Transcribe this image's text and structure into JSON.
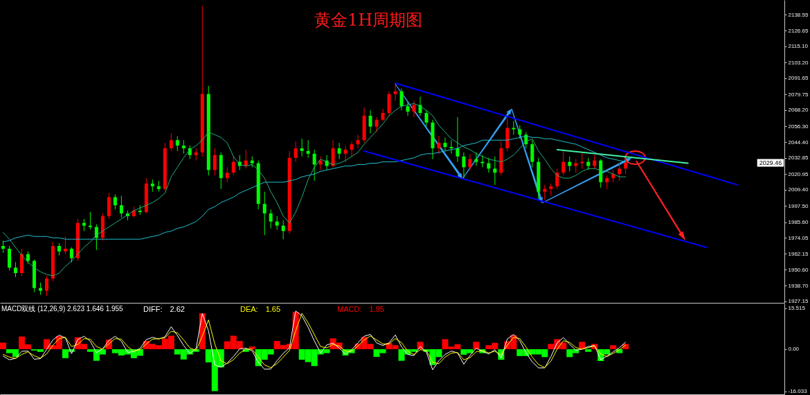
{
  "chart_data": [
    {
      "type": "candlestick",
      "title": "黄金1H周期图",
      "categories": [
        null,
        null,
        null,
        null,
        null,
        null,
        null,
        null,
        null,
        null,
        null,
        null,
        null,
        null,
        null,
        null,
        null,
        null,
        null,
        null,
        null,
        null,
        null,
        null,
        null,
        null,
        null,
        null,
        null,
        null,
        null,
        null,
        null,
        null,
        null,
        null,
        null,
        null,
        null,
        null,
        null,
        null,
        null,
        null,
        null,
        null,
        null,
        null,
        null,
        null,
        null,
        null,
        null,
        null,
        null,
        null,
        null,
        null,
        null,
        null,
        null,
        null,
        null,
        null,
        null,
        null,
        null,
        null,
        null,
        null,
        null,
        null,
        null,
        null,
        null,
        null,
        null,
        null,
        null,
        null,
        null,
        null,
        null,
        null,
        null,
        null,
        null,
        null,
        null,
        null,
        null,
        null,
        null,
        null,
        null,
        null,
        null,
        null,
        null,
        null,
        null,
        null,
        null,
        null,
        null,
        null,
        null,
        null,
        null,
        null,
        null,
        null,
        null,
        null,
        null,
        null,
        null,
        null,
        null,
        null,
        null,
        null,
        null,
        null,
        null,
        null
      ],
      "ohlc": [
        [
          1968,
          1972,
          1963,
          1966
        ],
        [
          1966,
          1968,
          1950,
          1952
        ],
        [
          1952,
          1956,
          1945,
          1948
        ],
        [
          1948,
          1966,
          1946,
          1962
        ],
        [
          1962,
          1964,
          1955,
          1957
        ],
        [
          1957,
          1958,
          1934,
          1937
        ],
        [
          1937,
          1941,
          1932,
          1935
        ],
        [
          1935,
          1946,
          1931,
          1944
        ],
        [
          1944,
          1971,
          1942,
          1968
        ],
        [
          1968,
          1970,
          1961,
          1964
        ],
        [
          1964,
          1975,
          1962,
          1966
        ],
        [
          1966,
          1967,
          1956,
          1959
        ],
        [
          1959,
          1988,
          1957,
          1985
        ],
        [
          1985,
          1988,
          1979,
          1983
        ],
        [
          1983,
          1993,
          1980,
          1982
        ],
        [
          1982,
          1984,
          1965,
          1974
        ],
        [
          1974,
          1992,
          1972,
          1990
        ],
        [
          1990,
          2007,
          1988,
          2004
        ],
        [
          2004,
          2006,
          1995,
          1998
        ],
        [
          1998,
          2005,
          1989,
          1992
        ],
        [
          1992,
          1994,
          1987,
          1990
        ],
        [
          1990,
          1997,
          1989,
          1994
        ],
        [
          1994,
          1998,
          1991,
          1993
        ],
        [
          1993,
          2018,
          1992,
          2014
        ],
        [
          2014,
          2017,
          2008,
          2012
        ],
        [
          2012,
          2016,
          2008,
          2010
        ],
        [
          2010,
          2044,
          2009,
          2040
        ],
        [
          2040,
          2051,
          2038,
          2046
        ],
        [
          2046,
          2049,
          2038,
          2042
        ],
        [
          2042,
          2046,
          2036,
          2040
        ],
        [
          2040,
          2042,
          2032,
          2035
        ],
        [
          2035,
          2040,
          2031,
          2037
        ],
        [
          2037,
          2145,
          2034,
          2080
        ],
        [
          2080,
          2086,
          2020,
          2024
        ],
        [
          2024,
          2040,
          2020,
          2035
        ],
        [
          2035,
          2037,
          2010,
          2018
        ],
        [
          2018,
          2026,
          2015,
          2022
        ],
        [
          2022,
          2034,
          2020,
          2030
        ],
        [
          2030,
          2035,
          2024,
          2027
        ],
        [
          2027,
          2039,
          2025,
          2031
        ],
        [
          2031,
          2034,
          2026,
          2029
        ],
        [
          2029,
          2031,
          1995,
          1999
        ],
        [
          1999,
          2008,
          1976,
          1992
        ],
        [
          1992,
          1995,
          1981,
          1986
        ],
        [
          1986,
          1990,
          1980,
          1983
        ],
        [
          1983,
          1987,
          1973,
          1979
        ],
        [
          1979,
          2038,
          1977,
          2033
        ],
        [
          2033,
          2045,
          2030,
          2040
        ],
        [
          2040,
          2047,
          2034,
          2038
        ],
        [
          2038,
          2046,
          2033,
          2036
        ],
        [
          2036,
          2039,
          2016,
          2028
        ],
        [
          2028,
          2034,
          2024,
          2031
        ],
        [
          2031,
          2035,
          2024,
          2027
        ],
        [
          2027,
          2046,
          2026,
          2040
        ],
        [
          2040,
          2044,
          2032,
          2036
        ],
        [
          2036,
          2042,
          2030,
          2039
        ],
        [
          2039,
          2045,
          2034,
          2043
        ],
        [
          2043,
          2050,
          2040,
          2046
        ],
        [
          2046,
          2070,
          2044,
          2064
        ],
        [
          2064,
          2068,
          2051,
          2056
        ],
        [
          2056,
          2063,
          2052,
          2061
        ],
        [
          2061,
          2069,
          2060,
          2066
        ],
        [
          2066,
          2082,
          2064,
          2080
        ],
        [
          2080,
          2088,
          2075,
          2082
        ],
        [
          2082,
          2084,
          2068,
          2071
        ],
        [
          2071,
          2074,
          2064,
          2067
        ],
        [
          2067,
          2075,
          2063,
          2072
        ],
        [
          2072,
          2078,
          2064,
          2066
        ],
        [
          2066,
          2068,
          2056,
          2059
        ],
        [
          2059,
          2061,
          2032,
          2040
        ],
        [
          2040,
          2049,
          2036,
          2044
        ],
        [
          2044,
          2048,
          2038,
          2041
        ],
        [
          2041,
          2046,
          2036,
          2040
        ],
        [
          2040,
          2063,
          2030,
          2034
        ],
        [
          2034,
          2037,
          2018,
          2026
        ],
        [
          2026,
          2036,
          2024,
          2032
        ],
        [
          2032,
          2037,
          2027,
          2030
        ],
        [
          2030,
          2035,
          2026,
          2029
        ],
        [
          2029,
          2033,
          2022,
          2025
        ],
        [
          2025,
          2034,
          2013,
          2022
        ],
        [
          2022,
          2045,
          2020,
          2040
        ],
        [
          2040,
          2062,
          2038,
          2055
        ],
        [
          2055,
          2060,
          2050,
          2054
        ],
        [
          2054,
          2057,
          2047,
          2050
        ],
        [
          2050,
          2052,
          2040,
          2043
        ],
        [
          2043,
          2046,
          2026,
          2030
        ],
        [
          2030,
          2033,
          2003,
          2008
        ],
        [
          2008,
          2013,
          2002,
          2010
        ],
        [
          2010,
          2014,
          2005,
          2012
        ],
        [
          2012,
          2025,
          2010,
          2022
        ],
        [
          2022,
          2038,
          2020,
          2030
        ],
        [
          2030,
          2034,
          2023,
          2027
        ],
        [
          2027,
          2032,
          2022,
          2029
        ],
        [
          2029,
          2037,
          2025,
          2030
        ],
        [
          2030,
          2033,
          2024,
          2027
        ],
        [
          2027,
          2035,
          2025,
          2031
        ],
        [
          2031,
          2032,
          2011,
          2015
        ],
        [
          2015,
          2020,
          2010,
          2018
        ],
        [
          2018,
          2024,
          2015,
          2021
        ],
        [
          2021,
          2030,
          2016,
          2025
        ],
        [
          2025,
          2031,
          2021,
          2029.46
        ],
        null,
        null,
        null,
        null,
        null,
        null,
        null,
        null,
        null,
        null,
        null,
        null,
        null,
        null,
        null,
        null,
        null,
        null,
        null,
        null,
        null,
        null,
        null,
        null,
        null
      ],
      "colors": [
        "#00ff00",
        "#00ff00",
        "#00ff00",
        "#ff0000",
        "#00ff00",
        "#00ff00",
        "#00ff00",
        "#ff0000",
        "#ff0000",
        "#00ff00",
        "#ff0000",
        "#00ff00",
        "#ff0000",
        "#00ff00",
        "#00ff00",
        "#00ff00",
        "#ff0000",
        "#ff0000",
        "#00ff00",
        "#00ff00",
        "#00ff00",
        "#ff0000",
        "#00ff00",
        "#ff0000",
        "#00ff00",
        "#00ff00",
        "#ff0000",
        "#ff0000",
        "#00ff00",
        "#00ff00",
        "#00ff00",
        "#ff0000",
        "#ff0000",
        "#00ff00",
        "#ff0000",
        "#00ff00",
        "#ff0000",
        "#ff0000",
        "#00ff00",
        "#ff0000",
        "#00ff00",
        "#00ff00",
        "#00ff00",
        "#00ff00",
        "#00ff00",
        "#00ff00",
        "#ff0000",
        "#ff0000",
        "#00ff00",
        "#00ff00",
        "#00ff00",
        "#ff0000",
        "#00ff00",
        "#ff0000",
        "#00ff00",
        "#ff0000",
        "#ff0000",
        "#ff0000",
        "#ff0000",
        "#00ff00",
        "#ff0000",
        "#ff0000",
        "#ff0000",
        "#ff0000",
        "#00ff00",
        "#00ff00",
        "#ff0000",
        "#00ff00",
        "#00ff00",
        "#00ff00",
        "#ff0000",
        "#00ff00",
        "#00ff00",
        "#00ff00",
        "#00ff00",
        "#ff0000",
        "#00ff00",
        "#00ff00",
        "#00ff00",
        "#00ff00",
        "#ff0000",
        "#ff0000",
        "#00ff00",
        "#00ff00",
        "#00ff00",
        "#00ff00",
        "#00ff00",
        "#ff0000",
        "#ff0000",
        "#ff0000",
        "#ff0000",
        "#00ff00",
        "#ff0000",
        "#ff0000",
        "#00ff00",
        "#ff0000",
        "#00ff00",
        "#ff0000",
        "#ff0000",
        "#ff0000",
        "#ff0000",
        null,
        null,
        null,
        null,
        null,
        null,
        null,
        null,
        null,
        null,
        null,
        null,
        null,
        null,
        null,
        null,
        null,
        null,
        null,
        null,
        null,
        null,
        null,
        null,
        null
      ],
      "series": [
        {
          "type": "line",
          "color": "#20b080",
          "values": [
            1978,
            1973,
            1967,
            1961,
            1956,
            1952,
            1949,
            1947,
            1946,
            1948,
            1953,
            1957,
            1962,
            1967,
            1971,
            1976,
            1979,
            1982,
            1985,
            1988,
            1991,
            1994,
            1996,
            1998,
            2000,
            2003,
            2007,
            2019,
            2026,
            2033,
            2039,
            2042,
            2046,
            2052,
            2050,
            2048,
            2044,
            2034,
            2028,
            2027,
            2028,
            2024,
            2018,
            2008,
            2000,
            1990,
            1985,
            1993,
            2004,
            2017,
            2026,
            2032,
            2030,
            2028,
            2029,
            2031,
            2034,
            2037,
            2043,
            2048,
            2053,
            2058,
            2064,
            2068,
            2071,
            2072,
            2073,
            2071,
            2068,
            2064,
            2057,
            2052,
            2047,
            2044,
            2041,
            2039,
            2036,
            2034,
            2032,
            2031,
            2030,
            2032,
            2035,
            2040,
            2045,
            2047,
            2038,
            2032,
            2025,
            2020,
            2018,
            2018,
            2020,
            2023,
            2025,
            2025,
            2024,
            2023,
            2021,
            2019,
            2019,
            null,
            null,
            null,
            null,
            null,
            null,
            null,
            null,
            null,
            null,
            null,
            null,
            null,
            null,
            null,
            null,
            null,
            null,
            null,
            null,
            null,
            null,
            null,
            null,
            null
          ]
        },
        {
          "type": "line",
          "color": "#20c0d0",
          "values": [
            1971,
            1972,
            1974,
            1975,
            1976,
            1975,
            1975,
            1975,
            1974,
            1974,
            1973,
            1973,
            1973,
            1973,
            1973,
            1973,
            1973,
            1973,
            1973,
            1973,
            1973,
            1973,
            1973,
            1974,
            1975,
            1976,
            1978,
            1979,
            1981,
            1982,
            1984,
            1986,
            1990,
            1995,
            1997,
            2000,
            2002,
            2004,
            2007,
            2009,
            2011,
            2013,
            2015,
            2015,
            2015,
            2015,
            2016,
            2017,
            2019,
            2020,
            2021,
            2023,
            2024,
            2025,
            2026,
            2027,
            2027,
            2028,
            2028,
            2029,
            2029,
            2030,
            2030,
            2030,
            2031,
            2032,
            2033,
            2035,
            2036,
            2036,
            2037,
            2038,
            2039,
            2040,
            2042,
            2043,
            2044,
            2046,
            2046,
            2046,
            2046,
            2046,
            2047,
            2048,
            2049,
            2048,
            2048,
            2047,
            2047,
            2046,
            2045,
            2044,
            2043,
            2041,
            2039,
            2037,
            2035,
            2033,
            2032,
            2031,
            2030,
            null,
            null,
            null,
            null,
            null,
            null,
            null,
            null,
            null,
            null,
            null,
            null,
            null,
            null,
            null,
            null,
            null,
            null,
            null,
            null,
            null,
            null,
            null,
            null,
            null
          ]
        },
        {
          "type": "line",
          "color": "#0000ff",
          "values": [
            null,
            null,
            null,
            null,
            null,
            null,
            null,
            null,
            null,
            null,
            null,
            null,
            null,
            null,
            null,
            null,
            null,
            null,
            null,
            null,
            null,
            null,
            null,
            null,
            null,
            null,
            null,
            null,
            null,
            null,
            null,
            null,
            null,
            null,
            null,
            null,
            null,
            null,
            null,
            null,
            null,
            null,
            null,
            null,
            null,
            null,
            null,
            null,
            null,
            null,
            null,
            null,
            null,
            null,
            null,
            null,
            null,
            null,
            null,
            null,
            null,
            null,
            null,
            2088,
            null,
            null,
            null,
            null,
            null,
            null,
            null,
            null,
            null,
            null,
            null,
            null,
            null,
            null,
            null,
            null,
            null,
            null,
            null,
            null,
            null,
            null,
            null,
            null,
            null,
            null,
            null,
            null,
            null,
            null,
            null,
            null,
            null,
            null,
            null,
            null,
            null,
            null,
            null,
            null,
            null,
            null,
            null,
            null,
            null,
            null,
            null,
            null,
            null,
            null,
            null,
            null,
            null,
            null,
            2013,
            null,
            null,
            null,
            null,
            null,
            null,
            null
          ]
        },
        {
          "type": "line",
          "color": "#0000ff",
          "values": [
            null,
            null,
            null,
            null,
            null,
            null,
            null,
            null,
            null,
            null,
            null,
            null,
            null,
            null,
            null,
            null,
            null,
            null,
            null,
            null,
            null,
            null,
            null,
            null,
            null,
            null,
            null,
            null,
            null,
            null,
            null,
            null,
            null,
            null,
            null,
            null,
            null,
            null,
            null,
            null,
            null,
            null,
            null,
            null,
            null,
            null,
            null,
            null,
            null,
            null,
            null,
            null,
            null,
            null,
            null,
            null,
            null,
            null,
            2038,
            null,
            null,
            null,
            null,
            null,
            null,
            null,
            null,
            null,
            null,
            null,
            null,
            null,
            null,
            null,
            null,
            null,
            null,
            null,
            null,
            null,
            null,
            null,
            null,
            null,
            null,
            null,
            null,
            null,
            null,
            null,
            null,
            null,
            null,
            null,
            null,
            null,
            null,
            null,
            null,
            null,
            null,
            null,
            null,
            null,
            null,
            null,
            null,
            null,
            null,
            null,
            null,
            null,
            null,
            1967,
            null,
            null,
            null,
            null,
            null,
            null,
            null,
            null,
            null,
            null,
            null,
            null
          ]
        },
        {
          "type": "line",
          "color": "#40f0a0",
          "values": [
            null,
            null,
            null,
            null,
            null,
            null,
            null,
            null,
            null,
            null,
            null,
            null,
            null,
            null,
            null,
            null,
            null,
            null,
            null,
            null,
            null,
            null,
            null,
            null,
            null,
            null,
            null,
            null,
            null,
            null,
            null,
            null,
            null,
            null,
            null,
            null,
            null,
            null,
            null,
            null,
            null,
            null,
            null,
            null,
            null,
            null,
            null,
            null,
            null,
            null,
            null,
            null,
            null,
            null,
            null,
            null,
            null,
            null,
            null,
            null,
            null,
            null,
            null,
            null,
            null,
            null,
            null,
            null,
            null,
            null,
            null,
            null,
            null,
            null,
            null,
            null,
            null,
            null,
            null,
            null,
            null,
            null,
            null,
            null,
            null,
            null,
            null,
            null,
            null,
            2039,
            null,
            null,
            null,
            null,
            null,
            null,
            null,
            null,
            null,
            null,
            null,
            null,
            null,
            null,
            null,
            null,
            null,
            null,
            null,
            null,
            2029,
            null,
            null,
            null,
            null,
            null,
            null,
            null,
            null,
            null,
            null,
            null,
            null,
            null,
            null,
            null
          ]
        }
      ],
      "ylim": [
        1926.1,
        2149.3
      ],
      "yticks": [
        2138.55,
        2126.65,
        {
          "value": 2115.1,
          "label": "2115.10"
        },
        {
          "value": 2103.2,
          "label": "2103.20"
        },
        2091.65,
        2079.75,
        {
          "value": 2068.2,
          "label": "2068.20"
        },
        {
          "value": 2056.3,
          "label": "2056.30"
        },
        {
          "value": 2044.4,
          "label": "2044.40"
        },
        2032.85,
        2020.95,
        {
          "value": 2009.4,
          "label": "2009.40"
        },
        {
          "value": 1997.5,
          "label": "1997.50"
        },
        {
          "value": 1985.6,
          "label": "1985.60"
        },
        1974.05,
        1962.15,
        {
          "value": 1950.6,
          "label": "1950.60"
        },
        {
          "value": 1938.7,
          "label": "1938.70"
        },
        1927.15
      ],
      "tick_labels": "y",
      "annotations": [
        "2029.46"
      ]
    },
    {
      "type": "bar",
      "title": "MACD双线 (12,26,9) 2.623 1.646 1.955",
      "categories": [
        null,
        null,
        null,
        null,
        null,
        null,
        null,
        null,
        null,
        null,
        null,
        null,
        null,
        null,
        null,
        null,
        null,
        null,
        null,
        null,
        null,
        null,
        null,
        null,
        null,
        null,
        null,
        null,
        null,
        null,
        null,
        null,
        null,
        null,
        null,
        null,
        null,
        null,
        null,
        null,
        null,
        null,
        null,
        null,
        null,
        null,
        null,
        null,
        null,
        null,
        null,
        null,
        null,
        null,
        null,
        null,
        null,
        null,
        null,
        null,
        null,
        null,
        null,
        null,
        null,
        null,
        null,
        null,
        null,
        null,
        null,
        null,
        null,
        null,
        null,
        null,
        null,
        null,
        null,
        null,
        null,
        null,
        null,
        null,
        null,
        null,
        null,
        null,
        null,
        null,
        null,
        null,
        null,
        null,
        null,
        null,
        null,
        null,
        null,
        null,
        null,
        null,
        null,
        null,
        null,
        null,
        null,
        null,
        null,
        null,
        null,
        null,
        null,
        null,
        null,
        null,
        null,
        null,
        null,
        null,
        null,
        null,
        null,
        null,
        null,
        null
      ],
      "series": [
        {
          "name": "DIFF:",
          "type": "line",
          "color": "#ffffff",
          "values": [
            -2.6,
            -4.0,
            -3.5,
            -0.8,
            -0.7,
            -3.8,
            -3.6,
            -0.1,
            3.5,
            5.3,
            4.3,
            -1.7,
            3.7,
            4.9,
            3.0,
            -1.3,
            0.2,
            3.3,
            4.9,
            3.0,
            -1.2,
            -0.9,
            0.3,
            3.6,
            4.5,
            3.8,
            4.7,
            8.5,
            5.2,
            1.4,
            -1.6,
            0.3,
            13.5,
            6.9,
            -6.0,
            -6.8,
            -5.3,
            -2.8,
            0.1,
            0.4,
            -0.6,
            -5.0,
            -7.6,
            -7.5,
            -4.4,
            -1.6,
            0.5,
            14.5,
            12.6,
            8.3,
            3.1,
            -1.4,
            1.6,
            2.3,
            0.4,
            -1.9,
            -0.2,
            2.4,
            4.9,
            5.6,
            2.4,
            1.4,
            2.4,
            5.4,
            0.9,
            -2.0,
            -2.4,
            1.0,
            -1.2,
            -7.8,
            -4.4,
            -2.0,
            -0.7,
            -1.4,
            -5.7,
            -2.4,
            0.4,
            -0.8,
            -1.8,
            -0.2,
            -3.3,
            3.9,
            5.6,
            3.2,
            -1.4,
            -4.8,
            -7.1,
            -7.1,
            -2.8,
            2.4,
            4.4,
            1.9,
            -0.4,
            0.0,
            1.0,
            1.4,
            -4.0,
            -2.6,
            -1.0,
            0.6,
            2.623,
            null,
            null,
            null,
            null,
            null,
            null,
            null,
            null,
            null,
            null,
            null,
            null,
            null,
            null,
            null,
            null,
            null,
            null,
            null,
            null,
            null,
            null,
            null,
            null,
            null
          ]
        },
        {
          "name": "DEA:",
          "type": "line",
          "color": "#ffff00",
          "values": [
            -2.0,
            -3.0,
            -3.5,
            -2.0,
            -1.0,
            -2.5,
            -3.4,
            -1.8,
            1.5,
            4.0,
            4.5,
            1.0,
            1.8,
            4.0,
            3.8,
            1.0,
            0.0,
            2.0,
            4.0,
            3.8,
            1.0,
            -0.7,
            -0.2,
            2.0,
            3.8,
            4.0,
            4.3,
            6.8,
            6.2,
            3.5,
            0.5,
            -0.5,
            5.0,
            11.1,
            2.0,
            -4.5,
            -5.5,
            -4.0,
            -1.5,
            0.0,
            0.0,
            -3.0,
            -6.0,
            -7.0,
            -5.5,
            -3.0,
            -0.5,
            7.0,
            13.6,
            10.0,
            5.5,
            1.0,
            0.5,
            1.8,
            1.2,
            -0.8,
            -0.8,
            1.2,
            3.5,
            5.0,
            3.5,
            2.0,
            2.0,
            4.0,
            2.5,
            -0.8,
            -2.0,
            -0.2,
            -0.5,
            -5.0,
            -5.5,
            -3.0,
            -1.5,
            -1.2,
            -4.0,
            -3.2,
            -1.0,
            -0.5,
            -1.4,
            -0.8,
            -2.2,
            1.5,
            4.5,
            4.0,
            0.8,
            -3.0,
            -5.8,
            -7.0,
            -4.5,
            0.0,
            3.2,
            2.6,
            0.6,
            0.0,
            0.6,
            1.2,
            -1.8,
            -2.8,
            -1.6,
            -0.2,
            1.646,
            null,
            null,
            null,
            null,
            null,
            null,
            null,
            null,
            null,
            null,
            null,
            null,
            null,
            null,
            null,
            null,
            null,
            null,
            null,
            null,
            null,
            null,
            null,
            null,
            null
          ]
        },
        {
          "name": "MACD:",
          "type": "bar",
          "color": "#ff0000",
          "values": [
            2.5,
            -1.5,
            -2.9,
            4.8,
            1.8,
            -0.5,
            -1.0,
            3.8,
            1.5,
            5.0,
            -3.4,
            -1.0,
            4.5,
            2.0,
            -1.0,
            -4.4,
            -2.0,
            3.6,
            -1.5,
            -2.4,
            -2.0,
            -3.4,
            -2.5,
            3.1,
            2.0,
            1.5,
            4.0,
            5.1,
            -2.0,
            -3.9,
            -2.0,
            -1.0,
            13.6,
            -5.0,
            -15.9,
            -6.9,
            3.0,
            5.1,
            3.1,
            -1.0,
            1.0,
            -6.4,
            -4.0,
            -2.0,
            3.1,
            1.6,
            2.0,
            14.1,
            -4.0,
            -4.9,
            -6.4,
            -2.0,
            -1.5,
            4.1,
            2.5,
            -2.4,
            -1.5,
            2.1,
            4.6,
            2.0,
            -2.9,
            -1.5,
            2.3,
            1.5,
            -4.4,
            -2.0,
            -1.0,
            2.8,
            -1.0,
            -6.0,
            -3.0,
            3.8,
            1.0,
            1.9,
            -2.1,
            -1.5,
            2.8,
            -1.5,
            1.5,
            2.4,
            -4.0,
            3.0,
            5.3,
            -2.6,
            -2.6,
            -2.0,
            -2.0,
            -3.0,
            2.0,
            3.8,
            2.5,
            -3.0,
            -1.5,
            2.8,
            -1.0,
            2.0,
            -4.5,
            -2.0,
            1.5,
            -1.5,
            1.955,
            null,
            null,
            null,
            null,
            null,
            null,
            null,
            null,
            null,
            null,
            null,
            null,
            null,
            null,
            null,
            null,
            null,
            null,
            null,
            null,
            null,
            null,
            null,
            null,
            null
          ],
          "colors": [
            "#ff0000",
            "#00ff00",
            "#00ff00",
            "#ff0000",
            "#ff0000",
            "#00ff00",
            "#00ff00",
            "#ff0000",
            "#ff0000",
            "#ff0000",
            "#00ff00",
            "#00ff00",
            "#ff0000",
            "#ff0000",
            "#00ff00",
            "#00ff00",
            "#00ff00",
            "#ff0000",
            "#00ff00",
            "#00ff00",
            "#00ff00",
            "#00ff00",
            "#00ff00",
            "#ff0000",
            "#ff0000",
            "#ff0000",
            "#ff0000",
            "#ff0000",
            "#00ff00",
            "#00ff00",
            "#00ff00",
            "#00ff00",
            "#ff0000",
            "#00ff00",
            "#00ff00",
            "#00ff00",
            "#ff0000",
            "#ff0000",
            "#ff0000",
            "#00ff00",
            "#ff0000",
            "#00ff00",
            "#00ff00",
            "#00ff00",
            "#ff0000",
            "#ff0000",
            "#ff0000",
            "#ff0000",
            "#00ff00",
            "#00ff00",
            "#00ff00",
            "#00ff00",
            "#00ff00",
            "#ff0000",
            "#ff0000",
            "#00ff00",
            "#00ff00",
            "#ff0000",
            "#ff0000",
            "#ff0000",
            "#00ff00",
            "#00ff00",
            "#ff0000",
            "#ff0000",
            "#00ff00",
            "#00ff00",
            "#00ff00",
            "#ff0000",
            "#00ff00",
            "#00ff00",
            "#00ff00",
            "#ff0000",
            "#ff0000",
            "#ff0000",
            "#00ff00",
            "#00ff00",
            "#ff0000",
            "#00ff00",
            "#ff0000",
            "#ff0000",
            "#00ff00",
            "#ff0000",
            "#ff0000",
            "#00ff00",
            "#00ff00",
            "#00ff00",
            "#00ff00",
            "#00ff00",
            "#ff0000",
            "#ff0000",
            "#ff0000",
            "#00ff00",
            "#00ff00",
            "#ff0000",
            "#00ff00",
            "#ff0000",
            "#00ff00",
            "#00ff00",
            "#ff0000",
            "#00ff00",
            "#ff0000",
            null,
            null,
            null,
            null,
            null,
            null,
            null,
            null,
            null,
            null,
            null,
            null,
            null,
            null,
            null,
            null,
            null,
            null,
            null,
            null,
            null,
            null,
            null,
            null,
            null
          ]
        }
      ],
      "ylim": [
        -17.1,
        17.3
      ],
      "yticks": [
        15.515,
        {
          "value": 0,
          "label": "0.00"
        },
        -16.033
      ],
      "tick_labels": "y",
      "legend": "top left",
      "annotations": [
        "2.62",
        "1.65",
        "1.95"
      ]
    }
  ]
}
